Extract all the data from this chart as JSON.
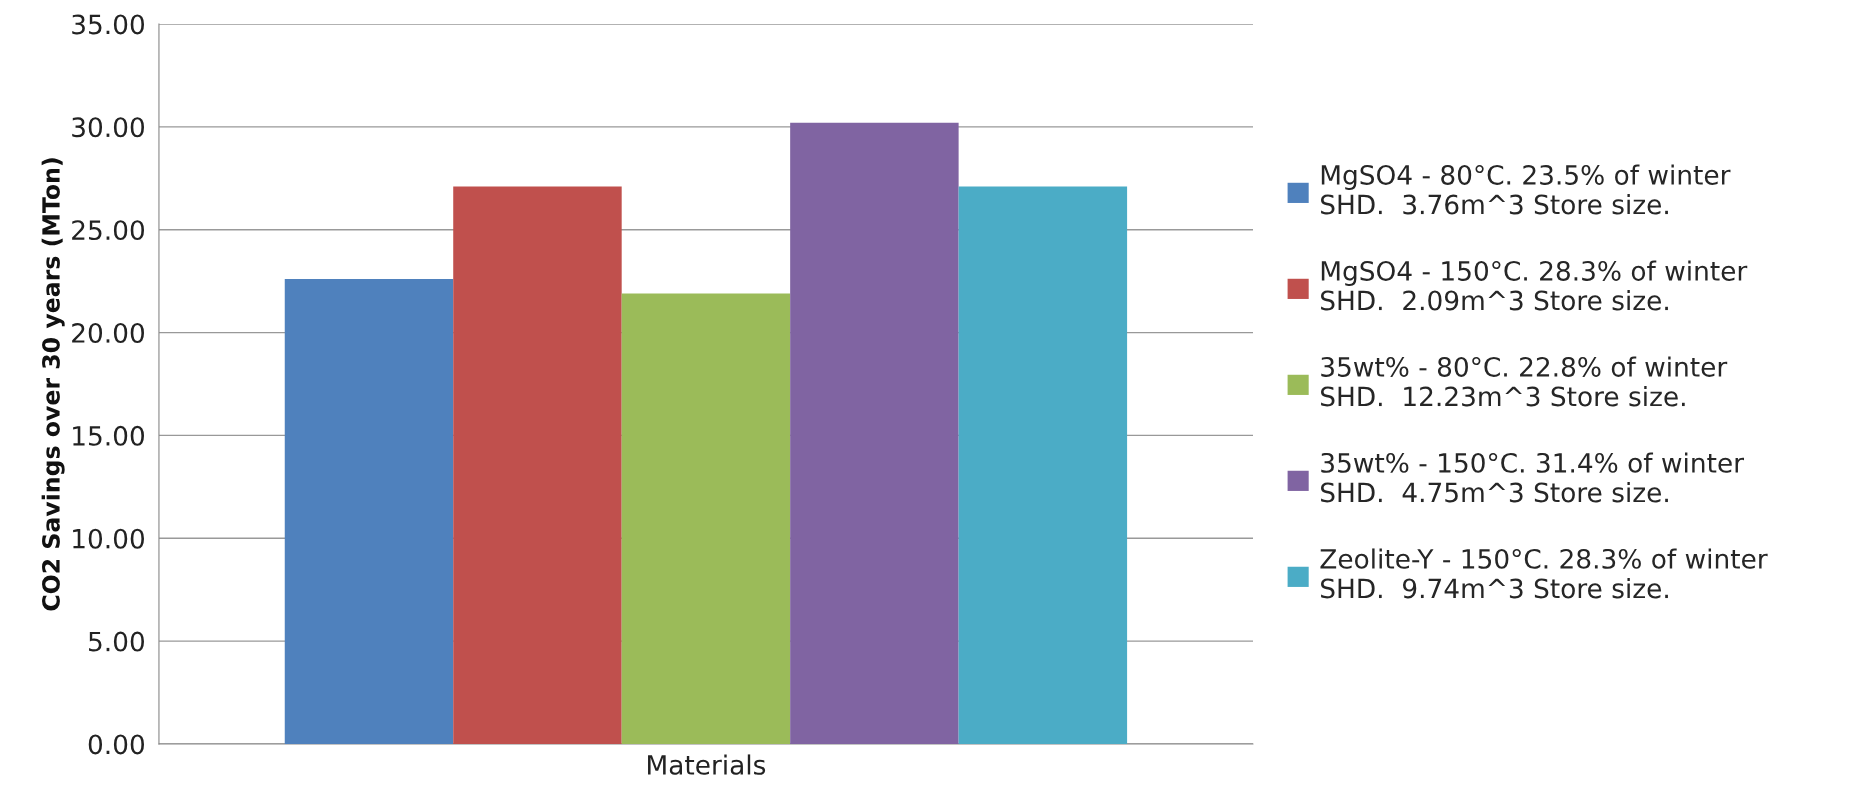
{
  "chart_data": {
    "type": "bar",
    "xlabel": "Materials",
    "ylabel": "CO2 Savings over 30 years (MTon)",
    "categories": [
      null
    ],
    "series": [
      {
        "name": "MgSO4 - 80°C. 23.5% of winter\nSHD.  3.76m^3 Store size.",
        "color": "#4f81bd",
        "values": [
          22.6
        ]
      },
      {
        "name": "MgSO4 - 150°C. 28.3% of winter\nSHD.  2.09m^3 Store size.",
        "color": "#c0504d",
        "values": [
          27.1
        ]
      },
      {
        "name": "35wt% - 80°C. 22.8% of winter\nSHD.  12.23m^3 Store size.",
        "color": "#9bbb59",
        "values": [
          21.9
        ]
      },
      {
        "name": "35wt% - 150°C. 31.4% of winter\nSHD.  4.75m^3 Store size.",
        "color": "#8064a2",
        "values": [
          30.2
        ]
      },
      {
        "name": "Zeolite-Y - 150°C. 28.3% of winter\nSHD.  9.74m^3 Store size.",
        "color": "#4bacc6",
        "values": [
          27.1
        ]
      }
    ],
    "ylim": [
      0,
      35
    ],
    "yticks": [
      {
        "value": 0,
        "label": "0.00"
      },
      {
        "value": 5,
        "label": "5.00"
      },
      {
        "value": 10,
        "label": "10.00"
      },
      {
        "value": 15,
        "label": "15.00"
      },
      {
        "value": 20,
        "label": "20.00"
      },
      {
        "value": 25,
        "label": "25.00"
      },
      {
        "value": 30,
        "label": "30.00"
      },
      {
        "value": 35,
        "label": "35.00"
      }
    ],
    "grid": "y",
    "legend": "right"
  }
}
